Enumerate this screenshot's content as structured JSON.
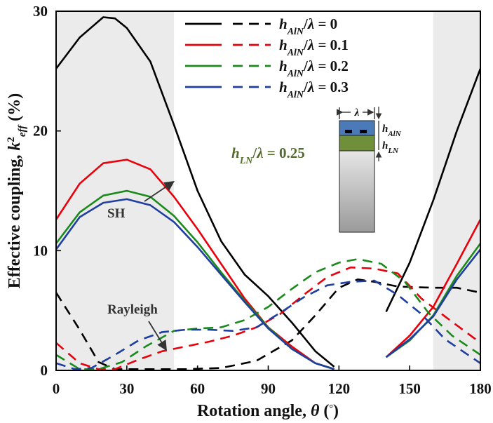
{
  "chart_data": {
    "type": "line",
    "title": "",
    "xlabel": "Rotation angle, θ (°)",
    "ylabel": "Effective coupling, k²eff (%)",
    "xlim": [
      0,
      180
    ],
    "ylim": [
      0,
      30
    ],
    "xticks": [
      "0",
      "30",
      "60",
      "90",
      "120",
      "150",
      "180"
    ],
    "yticks": [
      "0",
      "10",
      "20",
      "30"
    ],
    "shaded_regions_deg": [
      [
        0,
        50
      ],
      [
        160,
        180
      ]
    ],
    "legend_position": "top-right",
    "legend": [
      {
        "label": "h",
        "sub": "AlN",
        "rest": "/λ = 0",
        "color": "#000000"
      },
      {
        "label": "h",
        "sub": "AlN",
        "rest": "/λ = 0.1",
        "color": "#e8000b"
      },
      {
        "label": "h",
        "sub": "AlN",
        "rest": "/λ = 0.2",
        "color": "#1a8a1a"
      },
      {
        "label": "h",
        "sub": "AlN",
        "rest": "/λ = 0.3",
        "color": "#1f3fa0"
      }
    ],
    "annotations": {
      "sh_label": "SH",
      "rayleigh_label": "Rayleigh",
      "thickness_param": {
        "label": "h",
        "sub": "LN",
        "rest": "/λ = 0.25",
        "color": "#556b2f"
      }
    },
    "inset": {
      "lambda_label": "λ",
      "aln_label": "h",
      "aln_sub": "AlN",
      "ln_label": "h",
      "ln_sub": "LN",
      "aln_color": "#4a7ab8",
      "ln_color": "#6f8f3a"
    },
    "series": [
      {
        "mode": "SH",
        "color": "#000000",
        "dash": false,
        "points": [
          [
            0,
            25.2
          ],
          [
            10,
            27.8
          ],
          [
            20,
            29.5
          ],
          [
            25,
            29.4
          ],
          [
            30,
            28.6
          ],
          [
            40,
            25.8
          ],
          [
            50,
            20.5
          ],
          [
            60,
            15.0
          ],
          [
            70,
            10.8
          ],
          [
            80,
            8.0
          ],
          [
            90,
            6.2
          ],
          [
            100,
            4.0
          ],
          [
            110,
            1.6
          ],
          [
            118,
            0.3
          ],
          [
            140,
            4.9
          ],
          [
            150,
            9.0
          ],
          [
            160,
            14.2
          ],
          [
            170,
            20.0
          ],
          [
            180,
            25.2
          ]
        ]
      },
      {
        "mode": "Rayleigh",
        "color": "#000000",
        "dash": true,
        "points": [
          [
            0,
            6.5
          ],
          [
            10,
            3.4
          ],
          [
            18,
            0.7
          ],
          [
            25,
            0.1
          ],
          [
            40,
            0.1
          ],
          [
            55,
            0.1
          ],
          [
            70,
            0.2
          ],
          [
            85,
            0.8
          ],
          [
            100,
            2.5
          ],
          [
            110,
            4.6
          ],
          [
            120,
            6.9
          ],
          [
            128,
            7.6
          ],
          [
            135,
            7.4
          ],
          [
            145,
            7.0
          ],
          [
            160,
            6.9
          ],
          [
            170,
            6.9
          ],
          [
            180,
            6.5
          ]
        ]
      },
      {
        "mode": "SH",
        "color": "#e8000b",
        "dash": false,
        "points": [
          [
            0,
            12.6
          ],
          [
            10,
            15.6
          ],
          [
            20,
            17.3
          ],
          [
            30,
            17.6
          ],
          [
            40,
            16.8
          ],
          [
            50,
            14.5
          ],
          [
            60,
            11.8
          ],
          [
            70,
            8.9
          ],
          [
            80,
            6.0
          ],
          [
            90,
            3.6
          ],
          [
            100,
            2.0
          ],
          [
            110,
            0.6
          ],
          [
            118,
            0.1
          ],
          [
            140,
            1.1
          ],
          [
            150,
            2.9
          ],
          [
            160,
            5.3
          ],
          [
            170,
            8.9
          ],
          [
            180,
            12.6
          ]
        ]
      },
      {
        "mode": "Rayleigh",
        "color": "#e8000b",
        "dash": true,
        "points": [
          [
            0,
            2.3
          ],
          [
            10,
            0.6
          ],
          [
            18,
            0.1
          ],
          [
            25,
            0.1
          ],
          [
            35,
            0.9
          ],
          [
            45,
            1.6
          ],
          [
            55,
            2.0
          ],
          [
            65,
            2.4
          ],
          [
            75,
            2.9
          ],
          [
            85,
            3.6
          ],
          [
            95,
            4.7
          ],
          [
            105,
            6.3
          ],
          [
            115,
            7.8
          ],
          [
            125,
            8.6
          ],
          [
            135,
            8.5
          ],
          [
            145,
            8.1
          ],
          [
            155,
            6.0
          ],
          [
            165,
            4.5
          ],
          [
            180,
            2.3
          ]
        ]
      },
      {
        "mode": "SH",
        "color": "#1a8a1a",
        "dash": false,
        "points": [
          [
            0,
            10.6
          ],
          [
            10,
            13.2
          ],
          [
            20,
            14.6
          ],
          [
            30,
            15.0
          ],
          [
            40,
            14.5
          ],
          [
            50,
            12.9
          ],
          [
            60,
            10.7
          ],
          [
            70,
            8.2
          ],
          [
            80,
            5.8
          ],
          [
            90,
            3.6
          ],
          [
            100,
            1.8
          ],
          [
            110,
            0.6
          ],
          [
            118,
            0.1
          ],
          [
            140,
            1.1
          ],
          [
            150,
            2.5
          ],
          [
            160,
            4.6
          ],
          [
            170,
            7.9
          ],
          [
            180,
            10.6
          ]
        ]
      },
      {
        "mode": "Rayleigh",
        "color": "#1a8a1a",
        "dash": true,
        "points": [
          [
            0,
            1.3
          ],
          [
            10,
            0.1
          ],
          [
            18,
            0.1
          ],
          [
            28,
            0.7
          ],
          [
            38,
            2.0
          ],
          [
            50,
            3.3
          ],
          [
            60,
            3.5
          ],
          [
            70,
            3.6
          ],
          [
            80,
            4.2
          ],
          [
            90,
            5.3
          ],
          [
            100,
            6.8
          ],
          [
            110,
            8.2
          ],
          [
            120,
            9.0
          ],
          [
            128,
            9.3
          ],
          [
            138,
            8.9
          ],
          [
            148,
            7.4
          ],
          [
            158,
            4.8
          ],
          [
            168,
            2.9
          ],
          [
            180,
            1.3
          ]
        ]
      },
      {
        "mode": "SH",
        "color": "#1f3fa0",
        "dash": false,
        "points": [
          [
            0,
            10.1
          ],
          [
            10,
            12.8
          ],
          [
            20,
            14.0
          ],
          [
            30,
            14.3
          ],
          [
            40,
            13.8
          ],
          [
            50,
            12.4
          ],
          [
            60,
            10.3
          ],
          [
            70,
            8.0
          ],
          [
            80,
            5.7
          ],
          [
            90,
            3.5
          ],
          [
            100,
            1.8
          ],
          [
            110,
            0.6
          ],
          [
            118,
            0.1
          ],
          [
            140,
            1.1
          ],
          [
            150,
            2.6
          ],
          [
            160,
            4.5
          ],
          [
            170,
            7.6
          ],
          [
            180,
            10.1
          ]
        ]
      },
      {
        "mode": "Rayleigh",
        "color": "#1f3fa0",
        "dash": true,
        "points": [
          [
            0,
            0.6
          ],
          [
            8,
            0.1
          ],
          [
            15,
            0.2
          ],
          [
            25,
            1.3
          ],
          [
            35,
            2.5
          ],
          [
            45,
            3.2
          ],
          [
            55,
            3.4
          ],
          [
            65,
            3.4
          ],
          [
            75,
            3.3
          ],
          [
            85,
            3.6
          ],
          [
            95,
            4.8
          ],
          [
            105,
            6.1
          ],
          [
            115,
            7.1
          ],
          [
            125,
            7.4
          ],
          [
            135,
            7.5
          ],
          [
            145,
            6.3
          ],
          [
            155,
            4.7
          ],
          [
            165,
            2.6
          ],
          [
            180,
            0.6
          ]
        ]
      }
    ]
  }
}
